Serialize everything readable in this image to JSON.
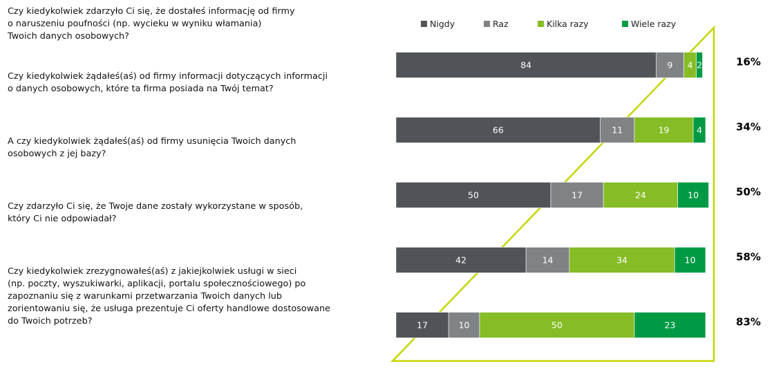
{
  "chart_data": {
    "type": "stacked-bar-horizontal",
    "categories": [
      [
        "Czy kiedykolwiek zdarzyło Ci się, że dostałeś informację od firmy",
        "o naruszeniu poufności (np. wycieku w wyniku włamania)",
        "Twoich danych osobowych?"
      ],
      [
        "Czy kiedykolwiek żądałeś(aś) od firmy informacji dotyczących informacji",
        "o danych osobowych, które ta firma posiada na Twój temat?"
      ],
      [
        "A czy kiedykolwiek żądałeś(aś) od firmy usunięcia Twoich danych",
        "osobowych z jej bazy?"
      ],
      [
        "Czy zdarzyło Ci się, że Twoje dane zostały wykorzystane w sposób,",
        "który Ci nie odpowiadał?"
      ],
      [
        "Czy kiedykolwiek zrezygnowałeś(aś) z jakiejkolwiek usługi w sieci",
        "(np. poczty, wyszukiwarki, aplikacji, portalu społecznościowego) po",
        "zapoznaniu się z warunkami przetwarzania Twoich danych lub",
        "zorientowaniu się, że usługa prezentuje Ci oferty handlowe dostosowane",
        "do Twoich potrzeb?"
      ]
    ],
    "series": [
      {
        "name": "Nigdy",
        "color": "#505357",
        "values": [
          84,
          66,
          50,
          42,
          17
        ]
      },
      {
        "name": "Raz",
        "color": "#7f8386",
        "values": [
          9,
          11,
          17,
          14,
          10
        ]
      },
      {
        "name": "Kilka razy",
        "color": "#86bc25",
        "values": [
          4,
          19,
          24,
          34,
          50
        ]
      },
      {
        "name": "Wiele razy",
        "color": "#009a44",
        "values": [
          2,
          4,
          10,
          10,
          23
        ]
      }
    ],
    "summary": {
      "values": [
        16,
        34,
        50,
        58,
        83
      ],
      "value_labels": [
        "16%",
        "34%",
        "50%",
        "58%",
        "83%"
      ]
    },
    "xlim": [
      0,
      100
    ]
  }
}
